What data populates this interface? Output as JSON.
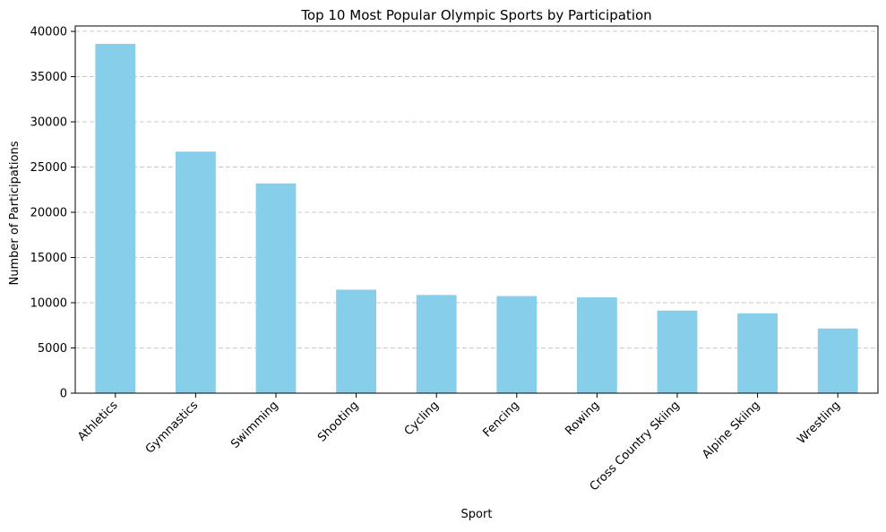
{
  "chart_data": {
    "type": "bar",
    "title": "Top 10 Most Popular Olympic Sports by Participation",
    "xlabel": "Sport",
    "ylabel": "Number of Participations",
    "categories": [
      "Athletics",
      "Gymnastics",
      "Swimming",
      "Shooting",
      "Cycling",
      "Fencing",
      "Rowing",
      "Cross Country Skiing",
      "Alpine Skiing",
      "Wrestling"
    ],
    "values": [
      38624,
      26707,
      23195,
      11448,
      10859,
      10735,
      10595,
      9133,
      8829,
      7154
    ],
    "ylim": [
      0,
      40600
    ],
    "yticks": [
      0,
      5000,
      10000,
      15000,
      20000,
      25000,
      30000,
      35000,
      40000
    ],
    "bar_color": "#87ceeb",
    "grid": "y-dashed",
    "legend": "none"
  }
}
